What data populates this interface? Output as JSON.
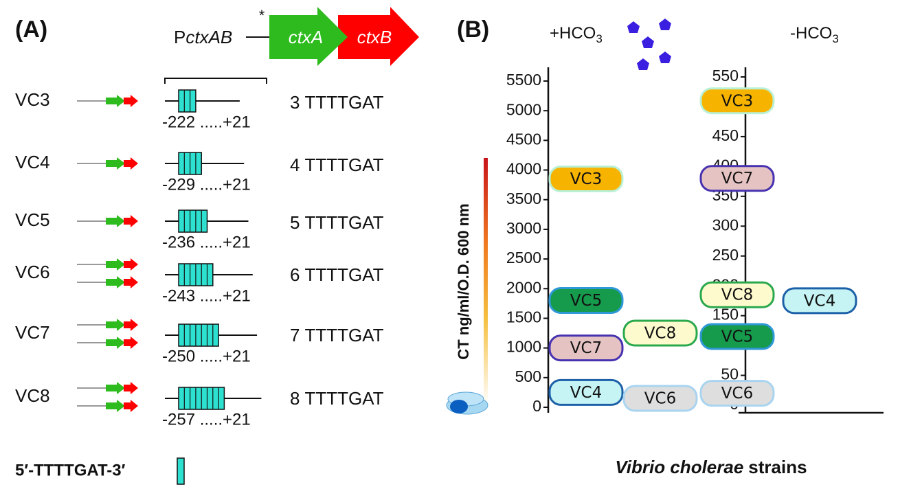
{
  "panel_a": {
    "label": "(A)",
    "promoter_prefix": "P",
    "promoter_gene": "ctxAB",
    "asterisk": "*",
    "gene_a": "ctxA",
    "gene_b": "ctxB",
    "motif": "TTTTGAT",
    "legend": "5′-TTTTGAT-3′",
    "rows": [
      {
        "strain": "VC3",
        "repeats": 3,
        "copies": 1,
        "range": "-222 .....+21"
      },
      {
        "strain": "VC4",
        "repeats": 4,
        "copies": 1,
        "range": "-229 .....+21"
      },
      {
        "strain": "VC5",
        "repeats": 5,
        "copies": 1,
        "range": "-236 .....+21"
      },
      {
        "strain": "VC6",
        "repeats": 6,
        "copies": 2,
        "range": "-243 .....+21"
      },
      {
        "strain": "VC7",
        "repeats": 7,
        "copies": 2,
        "range": "-250 .....+21"
      },
      {
        "strain": "VC8",
        "repeats": 8,
        "copies": 2,
        "range": "-257 .....+21"
      }
    ]
  },
  "panel_b": {
    "label": "(B)",
    "x_label_italic": "Vibrio cholerae",
    "x_label": "strains",
    "y_label": "CT ng/ml/O.D. 600 nm"
  },
  "chart_data": [
    {
      "type": "strip",
      "title": "+HCO",
      "title_sub": "3",
      "categories": [
        "VC3",
        "VC5",
        "VC7",
        "VC4",
        "VC8",
        "VC6"
      ],
      "values": [
        3850,
        1800,
        1000,
        250,
        1250,
        150
      ],
      "colors": [
        "#f6b400",
        "#169a4c",
        "#e6c3c3",
        "#c6f3f3",
        "#fdfbcd",
        "#dedede"
      ],
      "edge_colors": [
        "#b9f0d6",
        "#2f98d6",
        "#4632b0",
        "#1c60a8",
        "#2aa84c",
        "#a9d4f0"
      ],
      "ylim": [
        0,
        5500
      ],
      "yticks": [
        0,
        500,
        1000,
        1500,
        2000,
        2500,
        3000,
        3500,
        4000,
        4500,
        5000,
        5500
      ]
    },
    {
      "type": "strip",
      "title": "-HCO",
      "title_sub": "3",
      "categories": [
        "VC3",
        "VC7",
        "VC8",
        "VC5",
        "VC6",
        "VC4"
      ],
      "values": [
        510,
        380,
        185,
        115,
        20,
        175
      ],
      "colors": [
        "#f6b400",
        "#e6c3c3",
        "#fdfbcd",
        "#169a4c",
        "#dedede",
        "#c6f3f3"
      ],
      "edge_colors": [
        "#b9f0d6",
        "#4632b0",
        "#2aa84c",
        "#2f98d6",
        "#a9d4f0",
        "#1c60a8"
      ],
      "ylim": [
        0,
        550
      ],
      "yticks": [
        0,
        50,
        100,
        150,
        200,
        250,
        300,
        350,
        400,
        450,
        500,
        550
      ]
    }
  ]
}
